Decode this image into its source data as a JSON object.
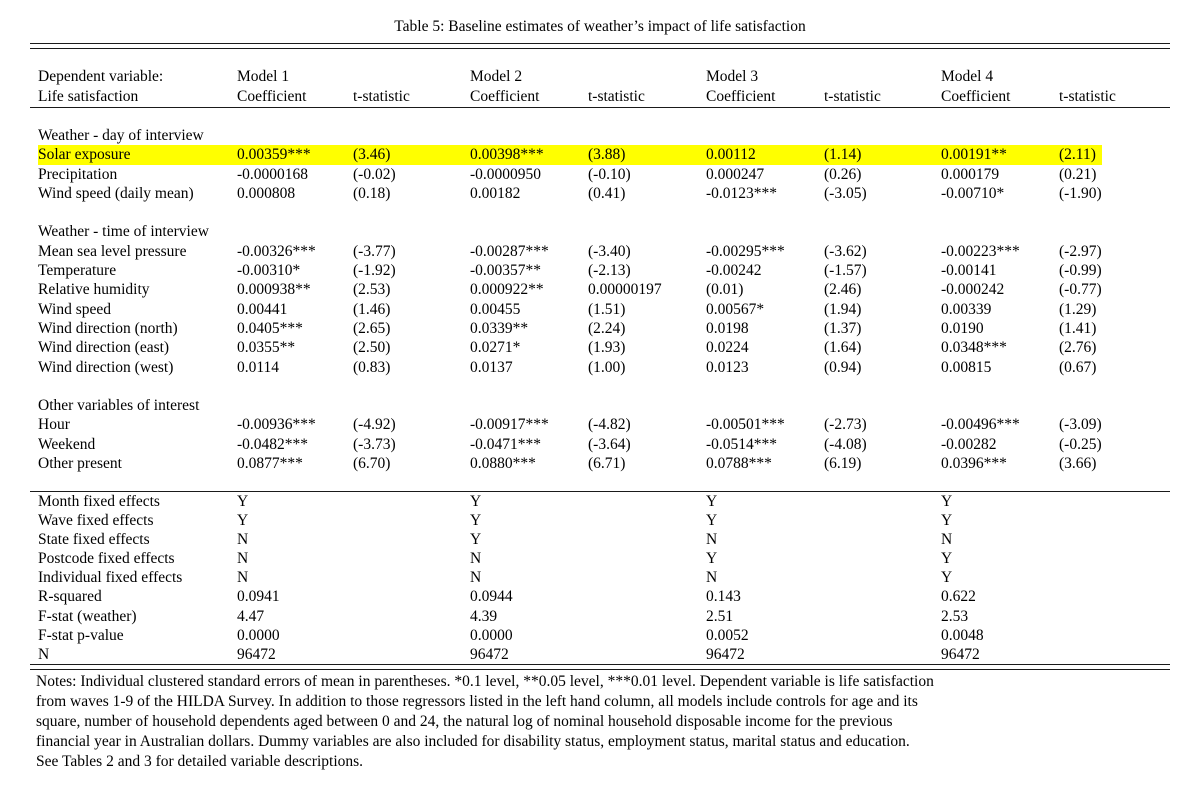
{
  "title": "Table 5: Baseline estimates of weather’s impact of life satisfaction",
  "header": {
    "label_line1": "Dependent variable:",
    "label_line2": "Life satisfaction",
    "models": [
      "Model 1",
      "Model 2",
      "Model 3",
      "Model 4"
    ],
    "coef_label": "Coefficient",
    "tstat_label": "t-statistic"
  },
  "highlight_color": "#ffff00",
  "table": {
    "sections": [
      {
        "header": "Weather - day of interview",
        "rows": [
          {
            "label": "Solar exposure",
            "highlight": true,
            "cells": [
              "0.00359***",
              "(3.46)",
              "0.00398***",
              "(3.88)",
              "0.00112",
              "(1.14)",
              "0.00191**",
              "(2.11)"
            ]
          },
          {
            "label": "Precipitation",
            "cells": [
              "-0.0000168",
              "(-0.02)",
              "-0.0000950",
              "(-0.10)",
              "0.000247",
              "(0.26)",
              "0.000179",
              "(0.21)"
            ]
          },
          {
            "label": "Wind speed (daily mean)",
            "cells": [
              "0.000808",
              "(0.18)",
              "0.00182",
              "(0.41)",
              "-0.0123***",
              "(-3.05)",
              "-0.00710*",
              "(-1.90)"
            ]
          }
        ]
      },
      {
        "header": "Weather - time of interview",
        "rows": [
          {
            "label": "Mean sea level pressure",
            "cells": [
              "-0.00326***",
              "(-3.77)",
              "-0.00287***",
              "(-3.40)",
              "-0.00295***",
              "(-3.62)",
              "-0.00223***",
              "(-2.97)"
            ]
          },
          {
            "label": "Temperature",
            "cells": [
              "-0.00310*",
              "(-1.92)",
              "-0.00357**",
              "(-2.13)",
              "-0.00242",
              "(-1.57)",
              "-0.00141",
              "(-0.99)"
            ]
          },
          {
            "label": "Relative humidity",
            "cells": [
              "0.000938**",
              "(2.53)",
              "0.000922**",
              "0.00000197",
              "(0.01)",
              "(2.46)",
              "-0.000242",
              "(-0.77)"
            ]
          },
          {
            "label": "Wind speed",
            "cells": [
              "0.00441",
              "(1.46)",
              "0.00455",
              "(1.51)",
              "0.00567*",
              "(1.94)",
              "0.00339",
              "(1.29)"
            ]
          },
          {
            "label": "Wind direction (north)",
            "cells": [
              "0.0405***",
              "(2.65)",
              "0.0339**",
              "(2.24)",
              "0.0198",
              "(1.37)",
              "0.0190",
              "(1.41)"
            ]
          },
          {
            "label": "Wind direction (east)",
            "cells": [
              "0.0355**",
              "(2.50)",
              "0.0271*",
              "(1.93)",
              "0.0224",
              "(1.64)",
              "0.0348***",
              "(2.76)"
            ]
          },
          {
            "label": "Wind direction (west)",
            "cells": [
              "0.0114",
              "(0.83)",
              "0.0137",
              "(1.00)",
              "0.0123",
              "(0.94)",
              "0.00815",
              "(0.67)"
            ]
          }
        ]
      },
      {
        "header": "Other variables of interest",
        "rows": [
          {
            "label": "Hour",
            "cells": [
              "-0.00936***",
              "(-4.92)",
              "-0.00917***",
              "(-4.82)",
              "-0.00501***",
              "(-2.73)",
              "-0.00496***",
              "(-3.09)"
            ]
          },
          {
            "label": "Weekend",
            "cells": [
              "-0.0482***",
              "(-3.73)",
              "-0.0471***",
              "(-3.64)",
              "-0.0514***",
              "(-4.08)",
              "-0.00282",
              "(-0.25)"
            ]
          },
          {
            "label": "Other present",
            "cells": [
              "0.0877***",
              "(6.70)",
              "0.0880***",
              "(6.71)",
              "0.0788***",
              "(6.19)",
              "0.0396***",
              "(3.66)"
            ]
          }
        ]
      }
    ],
    "stats_rows": [
      {
        "label": "Month fixed effects",
        "values": [
          "Y",
          "Y",
          "Y",
          "Y"
        ]
      },
      {
        "label": "Wave fixed effects",
        "values": [
          "Y",
          "Y",
          "Y",
          "Y"
        ]
      },
      {
        "label": "State fixed effects",
        "values": [
          "N",
          "Y",
          "N",
          "N"
        ]
      },
      {
        "label": "Postcode fixed effects",
        "values": [
          "N",
          "N",
          "Y",
          "Y"
        ]
      },
      {
        "label": "Individual fixed effects",
        "values": [
          "N",
          "N",
          "N",
          "Y"
        ]
      },
      {
        "label": "R-squared",
        "values": [
          "0.0941",
          "0.0944",
          "0.143",
          "0.622"
        ]
      },
      {
        "label": "F-stat (weather)",
        "values": [
          "4.47",
          "4.39",
          "2.51",
          "2.53"
        ]
      },
      {
        "label": "F-stat p-value",
        "values": [
          "0.0000",
          "0.0000",
          "0.0052",
          "0.0048"
        ]
      },
      {
        "label": "N",
        "values": [
          "96472",
          "96472",
          "96472",
          "96472"
        ]
      }
    ]
  },
  "notes_lines": [
    "Notes: Individual clustered standard errors of mean in parentheses. *0.1 level, **0.05 level, ***0.01 level. Dependent variable is life satisfaction",
    "from waves 1-9 of the HILDA Survey. In addition to those regressors listed in the left hand column, all models include controls for age and its",
    "square, number of household dependents aged between 0 and 24, the natural log of nominal household disposable income for the previous",
    "financial year in Australian dollars. Dummy variables are also included for disability status, employment status, marital status and education.",
    "See Tables 2 and 3 for detailed variable descriptions."
  ]
}
